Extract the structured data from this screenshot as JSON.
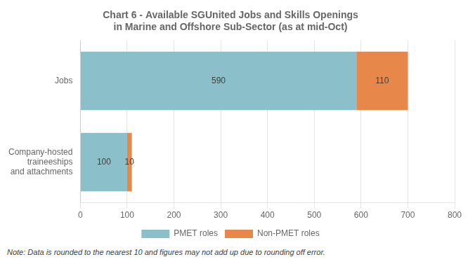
{
  "chart_data": {
    "type": "bar",
    "orientation": "horizontal",
    "stacked": true,
    "title": "Chart 6 - Available SGUnited Jobs and Skills Openings\nin Marine and Offshore Sub-Sector (as at mid-Oct)",
    "categories": [
      "Jobs",
      "Company-hosted\ntraineeships\nand attachments"
    ],
    "series": [
      {
        "name": "PMET roles",
        "color": "#8bbfca",
        "values": [
          590,
          100
        ]
      },
      {
        "name": "Non-PMET roles",
        "color": "#e8874a",
        "values": [
          110,
          10
        ]
      }
    ],
    "xlim": [
      0,
      800
    ],
    "xticks": [
      0,
      100,
      200,
      300,
      400,
      500,
      600,
      700,
      800
    ],
    "grid": true,
    "legend": "bottom",
    "data_labels": true,
    "annotations": [
      "Note: Data is rounded to the nearest 10 and figures may not add up due to rounding off error."
    ]
  }
}
